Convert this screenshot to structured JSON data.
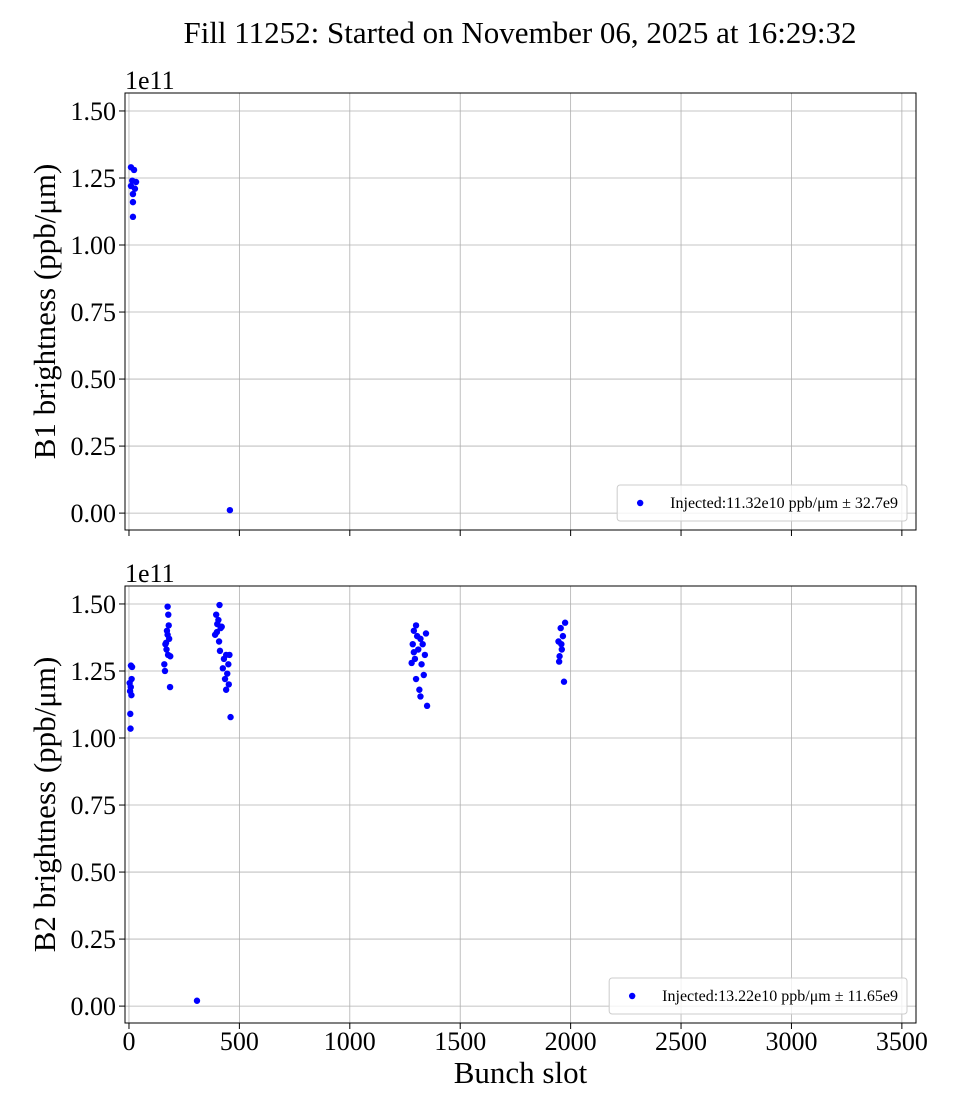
{
  "title": "Fill 11252: Started on November 06, 2025 at 16:29:32",
  "chart_data": [
    {
      "type": "scatter",
      "ylabel": "B1 brightness (ppb/μm)",
      "y_offset_label": "1e11",
      "xlim": [
        -18,
        3564
      ],
      "xticks": [
        0,
        500,
        1000,
        1500,
        2000,
        2500,
        3000,
        3500
      ],
      "show_xtick_labels": false,
      "ylim": [
        -0.063,
        1.567
      ],
      "yticks": [
        {
          "value": 0,
          "label": "0.00"
        },
        0.25,
        {
          "value": 0.5,
          "label": "0.50"
        },
        0.75,
        {
          "value": 1,
          "label": "1.00"
        },
        1.25,
        {
          "value": 1.5,
          "label": "1.50"
        }
      ],
      "grid": true,
      "legend": "lower right",
      "series": [
        {
          "name": "Injected:11.32e10 ppb/μm ± 32.7e9",
          "color": "#0000ff",
          "x": [
            9,
            23,
            15,
            32,
            9,
            27,
            18,
            18,
            18,
            457
          ],
          "values": [
            1.29,
            1.28,
            1.24,
            1.235,
            1.22,
            1.21,
            1.19,
            1.16,
            1.105,
            0.011
          ]
        }
      ]
    },
    {
      "type": "scatter",
      "ylabel": "B2 brightness (ppb/μm)",
      "y_offset_label": "1e11",
      "xlabel": "Bunch slot",
      "xlim": [
        -18,
        3564
      ],
      "xticks": [
        0,
        500,
        1000,
        1500,
        2000,
        2500,
        3000,
        3500
      ],
      "show_xtick_labels": true,
      "ylim": [
        -0.063,
        1.567
      ],
      "yticks": [
        {
          "value": 0,
          "label": "0.00"
        },
        0.25,
        {
          "value": 0.5,
          "label": "0.50"
        },
        0.75,
        {
          "value": 1,
          "label": "1.00"
        },
        1.25,
        {
          "value": 1.5,
          "label": "1.50"
        }
      ],
      "grid": true,
      "legend": "lower right",
      "series": [
        {
          "name": "Injected:13.22e10 ppb/μm ± 11.65e9",
          "color": "#0000ff",
          "x": [
            9,
            14,
            12,
            3,
            8,
            5,
            11,
            6,
            7,
            175,
            178,
            180,
            172,
            182,
            165,
            170,
            177,
            160,
            163,
            187,
            186,
            168,
            175,
            410,
            395,
            405,
            400,
            415,
            390,
            408,
            412,
            440,
            455,
            430,
            450,
            425,
            445,
            435,
            452,
            440,
            460,
            398,
            420,
            308,
            1300,
            1290,
            1320,
            1345,
            1285,
            1330,
            1310,
            1340,
            1295,
            1325,
            1300,
            1315,
            1320,
            1350,
            1280,
            1335,
            1305,
            1290,
            1975,
            1955,
            1965,
            1945,
            1960,
            1950,
            1948,
            1970,
            1958
          ],
          "values": [
            1.27,
            1.265,
            1.22,
            1.205,
            1.19,
            1.175,
            1.16,
            1.09,
            1.035,
            1.49,
            1.46,
            1.42,
            1.4,
            1.37,
            1.35,
            1.33,
            1.31,
            1.275,
            1.25,
            1.305,
            1.19,
            1.355,
            1.385,
            1.496,
            1.46,
            1.44,
            1.425,
            1.41,
            1.385,
            1.36,
            1.325,
            1.31,
            1.31,
            1.295,
            1.275,
            1.26,
            1.24,
            1.22,
            1.2,
            1.18,
            1.078,
            1.395,
            1.415,
            0.02,
            1.42,
            1.4,
            1.37,
            1.39,
            1.35,
            1.35,
            1.33,
            1.31,
            1.295,
            1.275,
            1.22,
            1.18,
            1.155,
            1.12,
            1.28,
            1.235,
            1.38,
            1.32,
            1.43,
            1.41,
            1.38,
            1.36,
            1.33,
            1.305,
            1.285,
            1.21,
            1.35
          ]
        }
      ]
    }
  ]
}
